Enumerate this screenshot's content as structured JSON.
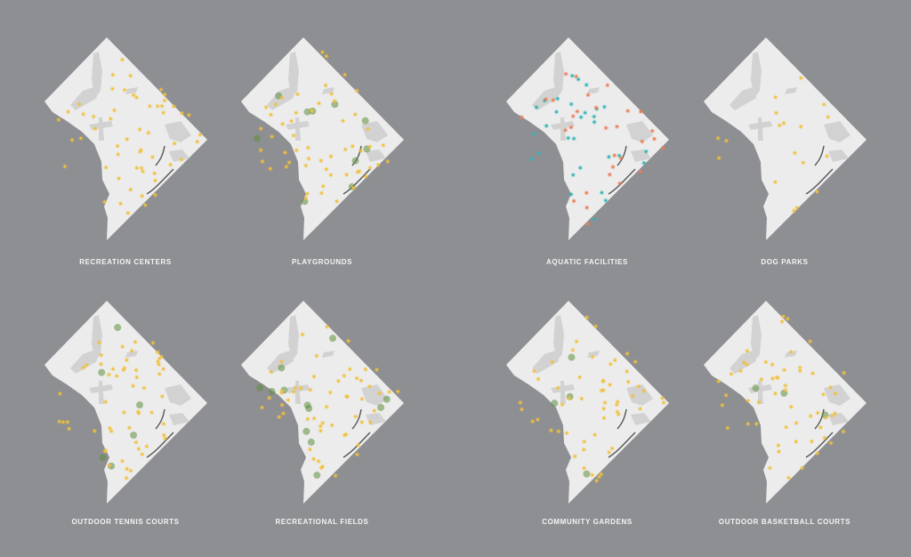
{
  "colors": {
    "background": "#8e8f93",
    "land": "#ececec",
    "parks": "#d2d2d2",
    "water_edge": "#555555",
    "yellow": "#f2c03a",
    "green": "#5f8f3c",
    "orange": "#ef7b55",
    "teal": "#2fb5b5"
  },
  "maps": [
    {
      "title": "RECREATION CENTERS",
      "marker_colors": [
        "yellow"
      ],
      "green_count": 0
    },
    {
      "title": "PLAYGROUNDS",
      "marker_colors": [
        "yellow"
      ],
      "green_count": 10
    },
    {
      "title": "AQUATIC FACILITIES",
      "marker_colors": [
        "orange",
        "teal"
      ],
      "green_count": 0
    },
    {
      "title": "DOG PARKS",
      "marker_colors": [
        "yellow"
      ],
      "green_count": 0
    },
    {
      "title": "OUTDOOR TENNIS COURTS",
      "marker_colors": [
        "yellow"
      ],
      "green_count": 6
    },
    {
      "title": "RECREATIONAL FIELDS",
      "marker_colors": [
        "yellow"
      ],
      "green_count": 12
    },
    {
      "title": "COMMUNITY GARDENS",
      "marker_colors": [
        "yellow"
      ],
      "green_count": 4
    },
    {
      "title": "OUTDOOR BASKETBALL COURTS",
      "marker_colors": [
        "yellow"
      ],
      "green_count": 3
    }
  ]
}
